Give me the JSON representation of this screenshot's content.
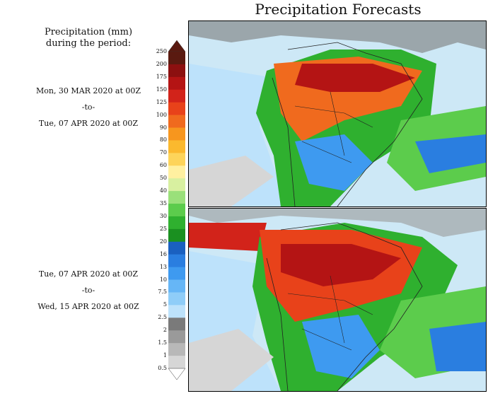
{
  "title": "Precipitation Forecasts",
  "legend": {
    "title_line1": "Precipitation (mm)",
    "title_line2": "during the period:",
    "levels": [
      "250",
      "200",
      "175",
      "150",
      "125",
      "100",
      "90",
      "80",
      "70",
      "60",
      "50",
      "40",
      "35",
      "30",
      "25",
      "20",
      "16",
      "13",
      "10",
      "7.5",
      "5",
      "2.5",
      "2",
      "1.5",
      "1",
      "0.5"
    ],
    "colors": [
      "#5a1a10",
      "#8c1010",
      "#b41414",
      "#d2231a",
      "#e8421a",
      "#f06a1e",
      "#f7961e",
      "#fbb92e",
      "#fdd45a",
      "#fff0a0",
      "#d8f0a0",
      "#9ae07a",
      "#5ccc4c",
      "#2fb02f",
      "#1a9020",
      "#1a60c0",
      "#2a7ee0",
      "#3e9af0",
      "#66b6f6",
      "#8fcdf8",
      "#bde2fb",
      "#7a7a7a",
      "#9a9a9a",
      "#b8b8b8",
      "#d6d6d6",
      "#ffffff"
    ]
  },
  "periods": [
    {
      "start": "Mon, 30 MAR 2020 at 00Z",
      "sep": "-to-",
      "end": "Tue, 07 APR 2020 at 00Z"
    },
    {
      "start": "Tue, 07 APR 2020 at 00Z",
      "sep": "-to-",
      "end": "Wed, 15 APR 2020 at 00Z"
    }
  ]
}
